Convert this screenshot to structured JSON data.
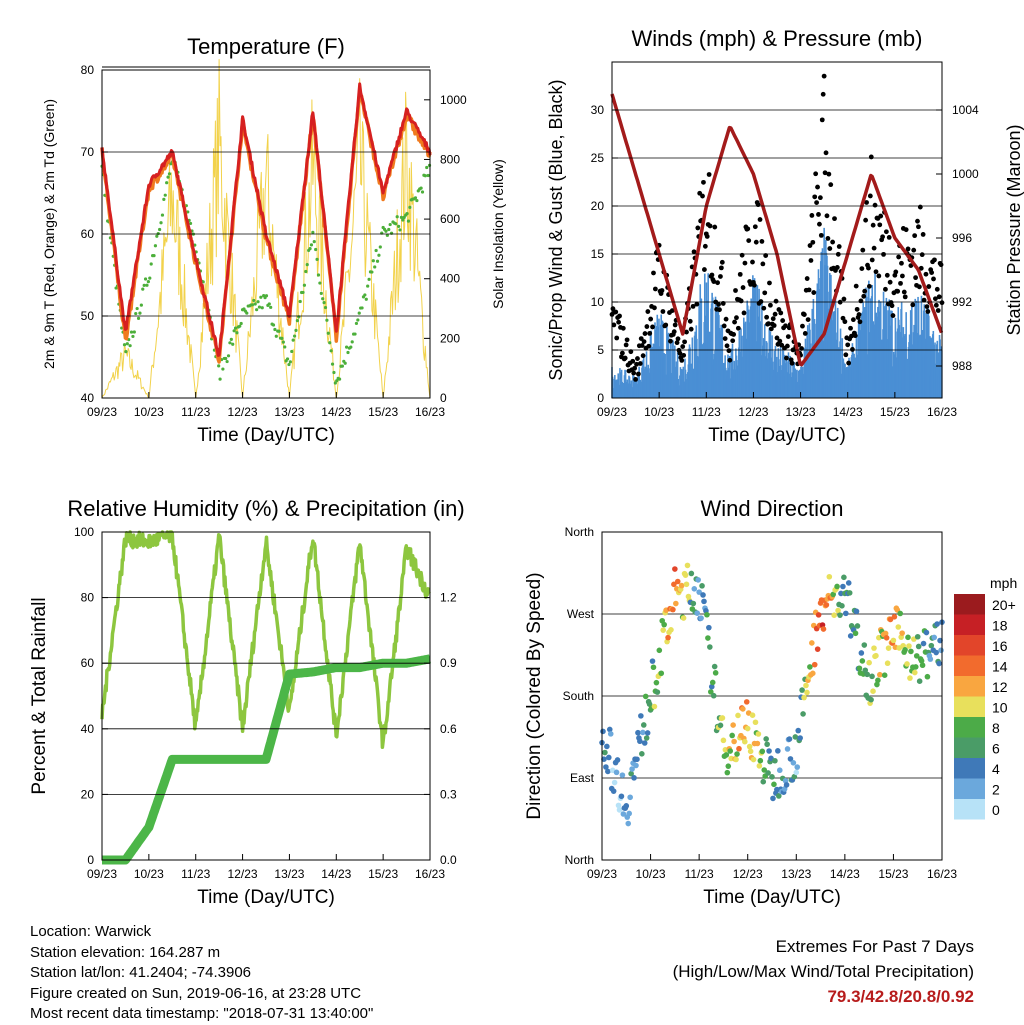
{
  "x_ticks": [
    "09/23",
    "10/23",
    "11/23",
    "12/23",
    "13/23",
    "14/23",
    "15/23",
    "16/23"
  ],
  "x_label": "Time (Day/UTC)",
  "chart_data": [
    {
      "type": "line",
      "title": "Temperature (F)",
      "xlabel": "Time (Day/UTC)",
      "ylabel": "2m & 9m T (Red, Orange) & 2m Td (Green)",
      "ylabel_right": "Solar Insolation (Yellow)",
      "ylim": [
        40,
        80
      ],
      "y_ticks": [
        40,
        50,
        60,
        70,
        80
      ],
      "ylim_right": [
        0,
        1100
      ],
      "y_ticks_right": [
        0,
        200,
        400,
        600,
        800,
        1000
      ],
      "x": [
        0,
        0.5,
        1,
        1.5,
        2,
        2.5,
        3,
        3.5,
        4,
        4.5,
        5,
        5.5,
        6,
        6.5,
        7
      ],
      "series": [
        {
          "name": "2m T",
          "color": "#d62020",
          "values": [
            70.5,
            48,
            66,
            70,
            57,
            45,
            74,
            60,
            50,
            75,
            48,
            78,
            65,
            75,
            70
          ]
        },
        {
          "name": "9m T",
          "color": "#f07a1e",
          "values": [
            70,
            47,
            65.5,
            69.5,
            56.5,
            44.5,
            73.5,
            59.5,
            49.5,
            74.5,
            47.5,
            77.5,
            64.5,
            74.5,
            69.5
          ]
        },
        {
          "name": "2m Td",
          "color": "#4caf3a",
          "values": [
            68,
            45,
            55,
            69,
            59,
            43,
            50,
            52,
            44,
            60,
            42,
            50,
            60,
            62,
            68
          ]
        },
        {
          "name": "Solar Insolation",
          "axis": "right",
          "color": "#f2d24b",
          "values": [
            0,
            180,
            0,
            850,
            0,
            1050,
            0,
            900,
            0,
            950,
            0,
            980,
            0,
            1000,
            0
          ]
        }
      ]
    },
    {
      "type": "scatter",
      "title": "Winds (mph) & Pressure (mb)",
      "xlabel": "Time (Day/UTC)",
      "ylabel": "Sonic/Prop Wind & Gust (Blue, Black)",
      "ylabel_right": "Station Pressure (Maroon)",
      "ylim": [
        0,
        35
      ],
      "y_ticks": [
        0,
        5,
        10,
        15,
        20,
        25,
        30
      ],
      "ylim_right": [
        986,
        1007
      ],
      "y_ticks_right": [
        988,
        992,
        996,
        1000,
        1004
      ],
      "x": [
        0,
        0.5,
        1,
        1.5,
        2,
        2.5,
        3,
        3.5,
        4,
        4.5,
        5,
        5.5,
        6,
        6.5,
        7
      ],
      "series": [
        {
          "name": "Wind",
          "color": "#4a8fd4",
          "values": [
            3,
            2,
            8,
            3,
            13,
            4,
            11,
            5,
            3,
            15,
            3,
            12,
            8,
            10,
            5
          ]
        },
        {
          "name": "Gust",
          "color": "#000000",
          "values": [
            10,
            3,
            15,
            5,
            24,
            7,
            20,
            9,
            5,
            30,
            5,
            22,
            15,
            18,
            12
          ]
        },
        {
          "name": "Station Pressure",
          "axis": "right",
          "color": "#a31b1b",
          "values": [
            1005,
            1000,
            995,
            990,
            998,
            1003,
            1000,
            995,
            988,
            990,
            995,
            1000,
            996,
            994,
            990
          ]
        }
      ]
    },
    {
      "type": "line",
      "title": "Relative Humidity (%) & Precipitation (in)",
      "xlabel": "Time (Day/UTC)",
      "ylabel": "Percent & Total Rainfall",
      "ylim": [
        0,
        100
      ],
      "y_ticks": [
        0,
        20,
        40,
        60,
        80,
        100
      ],
      "ylim_right": [
        0,
        1.5
      ],
      "y_ticks_right": [
        "0.0",
        "0.3",
        "0.6",
        "0.9",
        "1.2"
      ],
      "x": [
        0,
        0.5,
        1,
        1.5,
        2,
        2.5,
        3,
        3.5,
        4,
        4.5,
        5,
        5.5,
        6,
        6.5,
        7
      ],
      "series": [
        {
          "name": "Relative Humidity",
          "color": "#8dc63f",
          "values": [
            44,
            98,
            97,
            99,
            40,
            99,
            40,
            97,
            45,
            99,
            38,
            97,
            35,
            95,
            80
          ]
        },
        {
          "name": "Total Precipitation",
          "axis": "right",
          "color": "#4cb648",
          "values": [
            0,
            0,
            0.15,
            0.46,
            0.46,
            0.46,
            0.46,
            0.46,
            0.85,
            0.86,
            0.88,
            0.88,
            0.9,
            0.9,
            0.92
          ]
        }
      ]
    },
    {
      "type": "scatter",
      "title": "Wind Direction",
      "xlabel": "Time (Day/UTC)",
      "ylabel": "Direction (Colored By Speed)",
      "y_ticks": [
        "North",
        "East",
        "South",
        "West",
        "North"
      ],
      "ylim": [
        0,
        360
      ],
      "legend_title": "mph",
      "legend_levels": [
        "20+",
        "18",
        "16",
        "14",
        "12",
        "10",
        "8",
        "6",
        "4",
        "2",
        "0"
      ],
      "legend_colors": [
        "#9b1b1e",
        "#c62025",
        "#e2452a",
        "#f26b2d",
        "#f9a640",
        "#e8e05c",
        "#4cab48",
        "#4a9c67",
        "#3f79b8",
        "#6ba8dc",
        "#b7e2f7"
      ],
      "x": [
        0,
        0.5,
        1,
        1.5,
        2,
        2.5,
        3,
        3.5,
        4,
        4.5,
        5,
        5.5,
        6,
        6.5,
        7
      ],
      "series": [
        {
          "name": "Direction",
          "values": [
            140,
            60,
            180,
            290,
            300,
            120,
            150,
            90,
            120,
            280,
            290,
            200,
            250,
            220,
            240
          ],
          "speeds": [
            3,
            2,
            6,
            14,
            3,
            9,
            12,
            5,
            3,
            16,
            5,
            8,
            12,
            7,
            3
          ]
        }
      ]
    }
  ],
  "footer": {
    "location": "Location: Warwick",
    "elevation": "Station elevation: 164.287 m",
    "latlon": "Station lat/lon: 41.2404; -74.3906",
    "created": "Figure created on Sun, 2019-06-16, at 23:28 UTC",
    "recent": "Most recent data timestamp: \"2018-07-31 13:40:00\""
  },
  "extremes": {
    "title": "Extremes For Past 7 Days",
    "subtitle": "(High/Low/Max Wind/Total Precipitation)",
    "values": "79.3/42.8/20.8/0.92"
  }
}
